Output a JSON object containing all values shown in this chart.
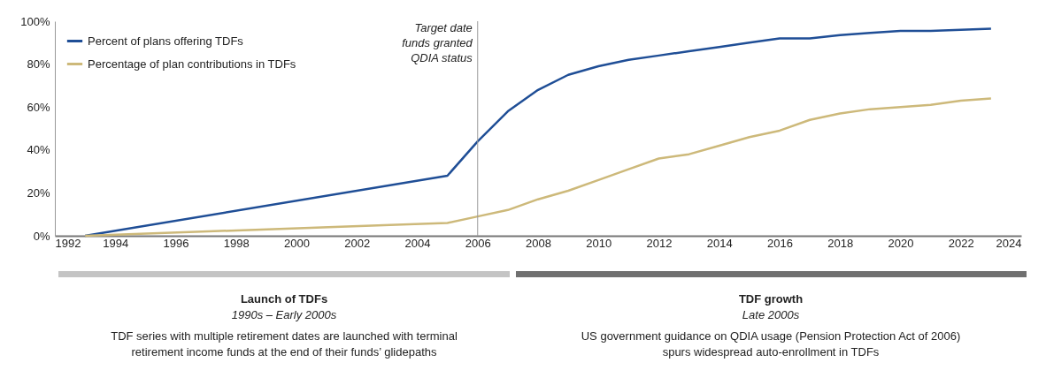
{
  "chart_data": {
    "type": "line",
    "x": [
      1993,
      2005,
      2006,
      2007,
      2008,
      2009,
      2010,
      2011,
      2012,
      2013,
      2014,
      2015,
      2016,
      2017,
      2018,
      2019,
      2020,
      2021,
      2022,
      2023
    ],
    "series": [
      {
        "name": "Percent of plans offering TDFs",
        "color": "#1f4e96",
        "values": [
          0,
          28,
          44,
          58,
          68,
          75,
          79,
          82,
          84,
          86,
          88,
          90,
          92,
          92,
          93.5,
          94.5,
          95.5,
          95.5,
          96,
          96.5
        ]
      },
      {
        "name": "Percentage of plan contributions in TDFs",
        "color": "#cdb97a",
        "values": [
          0,
          6,
          9,
          12,
          17,
          21,
          26,
          31,
          36,
          38,
          42,
          46,
          49,
          54,
          57,
          59,
          60,
          61,
          63,
          64
        ]
      }
    ],
    "xlim": [
      1992,
      2024
    ],
    "xticks": [
      1992,
      1994,
      1996,
      1998,
      2000,
      2002,
      2004,
      2006,
      2008,
      2010,
      2012,
      2014,
      2016,
      2018,
      2020,
      2022,
      2024
    ],
    "ylim": [
      0,
      100
    ],
    "yticks": [
      {
        "value": 0,
        "label": "0%"
      },
      {
        "value": 20,
        "label": "20%"
      },
      {
        "value": 40,
        "label": "40%"
      },
      {
        "value": 60,
        "label": "60%"
      },
      {
        "value": 80,
        "label": "80%"
      },
      {
        "value": 100,
        "label": "100%"
      }
    ],
    "grid": false,
    "legend": "top left",
    "ref_lines": [
      {
        "axis": "x",
        "value": 2006,
        "label": "Target date\nfunds granted\nQDIA status",
        "color": "#9a9a9a"
      }
    ],
    "annotations": [
      "Launch of TDFs",
      "1990s – Early 2000s",
      "TDF series with multiple retirement dates are launched with terminal\nretirement income funds at the end of their funds’ glidepaths",
      "TDF growth",
      "Late 2000s",
      "US government guidance on QDIA usage (Pension Protection Act of 2006)\nspurs widespread auto-enrollment in TDFs"
    ]
  }
}
